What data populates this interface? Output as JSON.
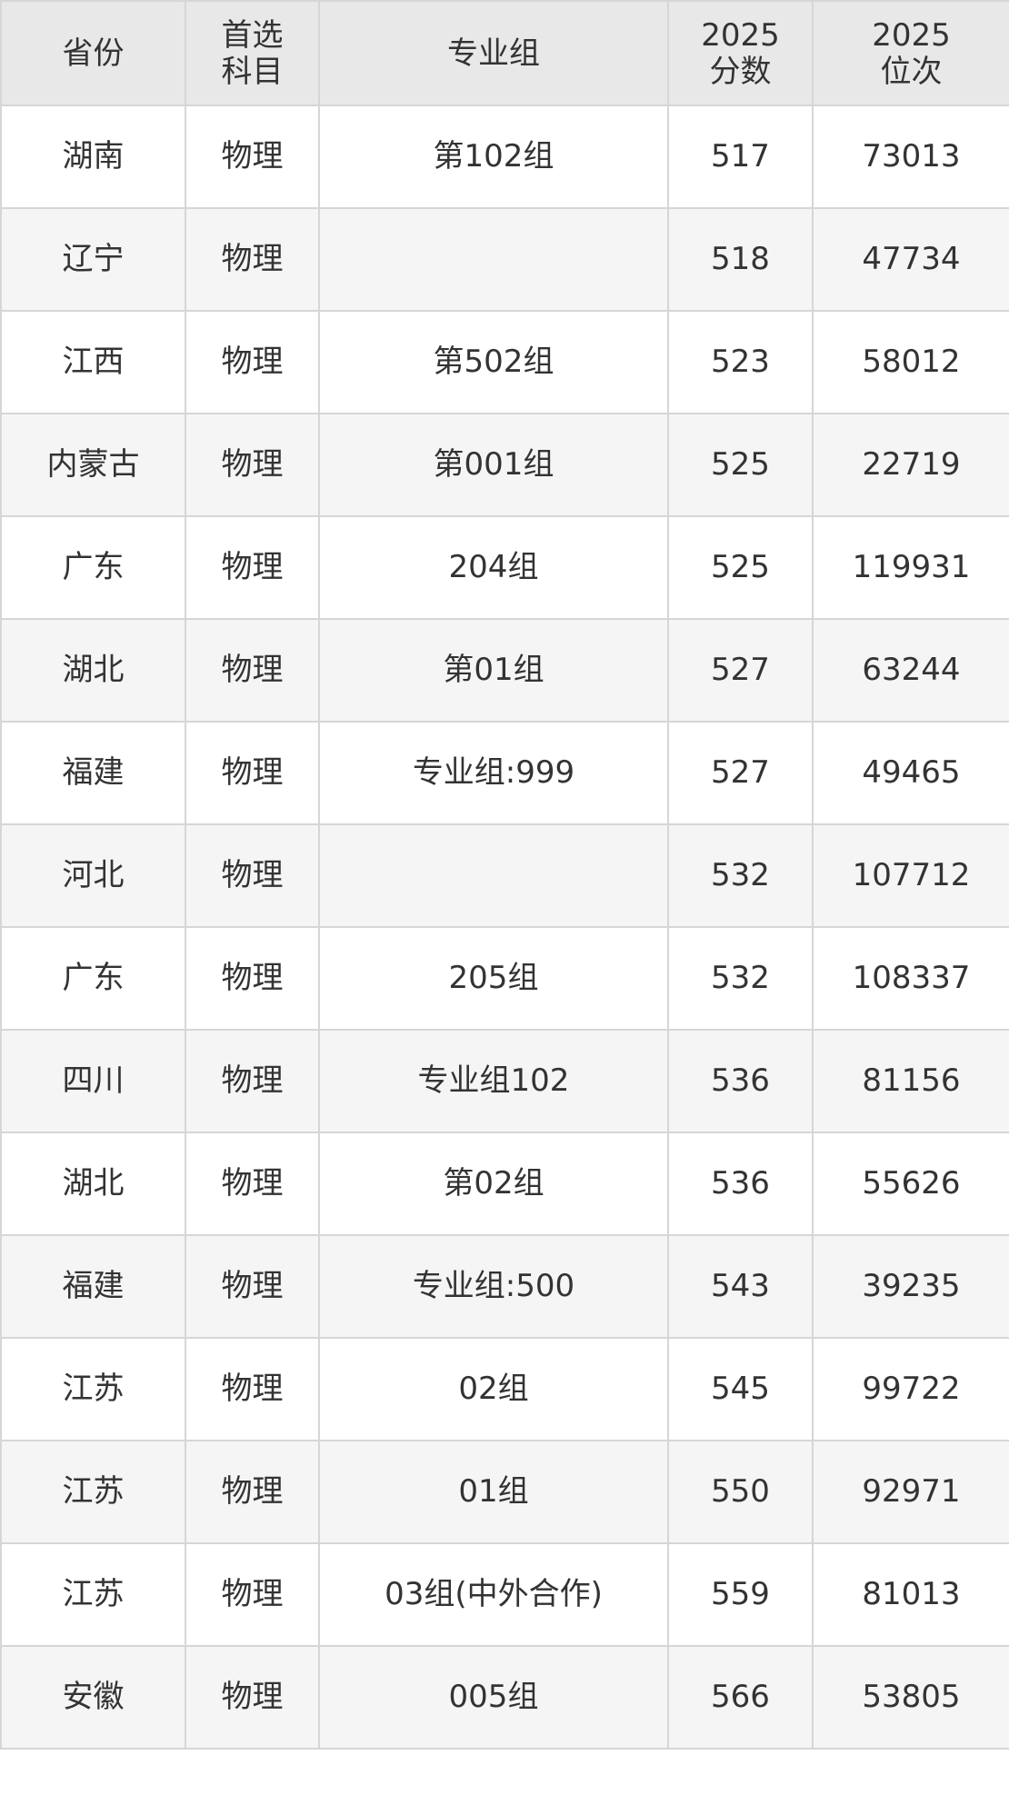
{
  "table": {
    "header": [
      "省份",
      "首选\n科目",
      "专业组",
      "2025\n分数",
      "2025\n位次"
    ],
    "rows": [
      [
        "湖南",
        "物理",
        "第102组",
        517,
        73013
      ],
      [
        "辽宁",
        "物理",
        null,
        518,
        47734
      ],
      [
        "江西",
        "物理",
        "第502组",
        523,
        58012
      ],
      [
        "内蒙古",
        "物理",
        "第001组",
        525,
        22719
      ],
      [
        "广东",
        "物理",
        "204组",
        525,
        119931
      ],
      [
        "湖北",
        "物理",
        "第01组",
        527,
        63244
      ],
      [
        "福建",
        "物理",
        "专业组:999",
        527,
        49465
      ],
      [
        "河北",
        "物理",
        null,
        532,
        107712
      ],
      [
        "广东",
        "物理",
        "205组",
        532,
        108337
      ],
      [
        "四川",
        "物理",
        "专业组102",
        536,
        81156
      ],
      [
        "湖北",
        "物理",
        "第02组",
        536,
        55626
      ],
      [
        "福建",
        "物理",
        "专业组:500",
        543,
        39235
      ],
      [
        "江苏",
        "物理",
        "02组",
        545,
        99722
      ],
      [
        "江苏",
        "物理",
        "01组",
        550,
        92971
      ],
      [
        "江苏",
        "物理",
        "03组(中外合作)",
        559,
        81013
      ],
      [
        "安徽",
        "物理",
        "005组",
        566,
        53805
      ]
    ]
  }
}
